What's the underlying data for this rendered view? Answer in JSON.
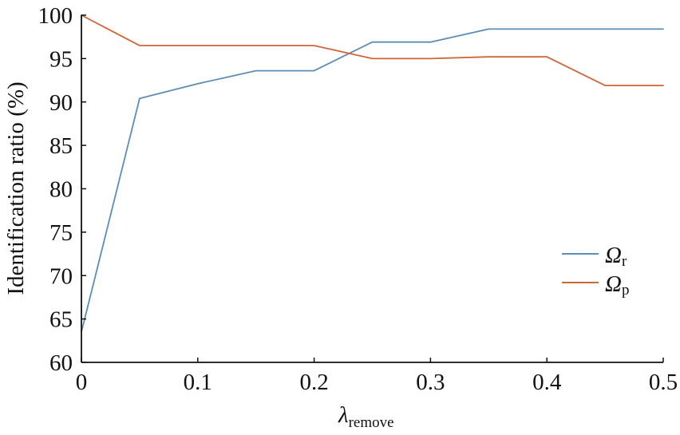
{
  "chart_data": {
    "type": "line",
    "title": "",
    "xlabel": "λ",
    "xlabel_sub": "remove",
    "ylabel": "Identification ratio (%)",
    "xlim": [
      0,
      0.5
    ],
    "ylim": [
      60,
      100
    ],
    "xticks": [
      0,
      0.1,
      0.2,
      0.3,
      0.4,
      0.5
    ],
    "xtick_labels": [
      "0",
      "0.1",
      "0.2",
      "0.3",
      "0.4",
      "0.5"
    ],
    "yticks": [
      60,
      65,
      70,
      75,
      80,
      85,
      90,
      95,
      100
    ],
    "ytick_labels": [
      "60",
      "65",
      "70",
      "75",
      "80",
      "85",
      "90",
      "95",
      "100"
    ],
    "grid": false,
    "legend_position": "bottom-right",
    "x": [
      0,
      0.05,
      0.1,
      0.15,
      0.2,
      0.25,
      0.3,
      0.35,
      0.4,
      0.45,
      0.5
    ],
    "series": [
      {
        "name": "Ω",
        "name_sub": "r",
        "color": "#5b8db8",
        "values": [
          63.5,
          90.4,
          92.1,
          93.6,
          93.6,
          96.9,
          96.9,
          98.4,
          98.4,
          98.4,
          98.4
        ]
      },
      {
        "name": "Ω",
        "name_sub": "p",
        "color": "#d0653a",
        "values": [
          100,
          96.5,
          96.5,
          96.5,
          96.5,
          95.0,
          95.0,
          95.2,
          95.2,
          91.9,
          91.9
        ]
      }
    ]
  }
}
